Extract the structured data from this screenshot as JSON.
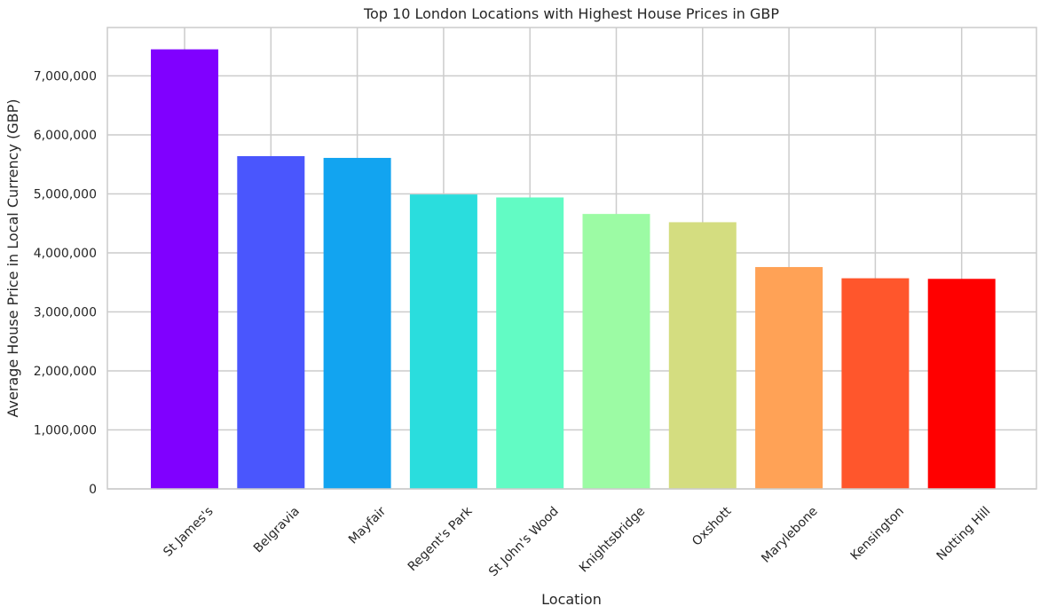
{
  "chart_data": {
    "type": "bar",
    "title": "Top 10 London Locations with Highest House Prices in GBP",
    "xlabel": "Location",
    "ylabel": "Average House Price in Local Currency (GBP)",
    "categories": [
      "St James's",
      "Belgravia",
      "Mayfair",
      "Regent's Park",
      "St John's Wood",
      "Knightsbridge",
      "Oxshott",
      "Marylebone",
      "Kensington",
      "Notting Hill"
    ],
    "values": [
      7450000,
      5640000,
      5610000,
      4990000,
      4940000,
      4660000,
      4520000,
      3760000,
      3570000,
      3560000
    ],
    "colors": [
      "#8000ff",
      "#4a56fd",
      "#12a4f0",
      "#2adddd",
      "#62fbc4",
      "#9cfba4",
      "#d4dd80",
      "#ffa256",
      "#ff562c",
      "#ff0000"
    ],
    "ylim": [
      0,
      7820000
    ],
    "yticks": [
      0,
      1000000,
      2000000,
      3000000,
      4000000,
      5000000,
      6000000,
      7000000
    ],
    "ytick_labels": [
      "0",
      "1,000,000",
      "2,000,000",
      "3,000,000",
      "4,000,000",
      "5,000,000",
      "6,000,000",
      "7,000,000"
    ],
    "grid": true,
    "xtick_rotation_deg": 45
  }
}
